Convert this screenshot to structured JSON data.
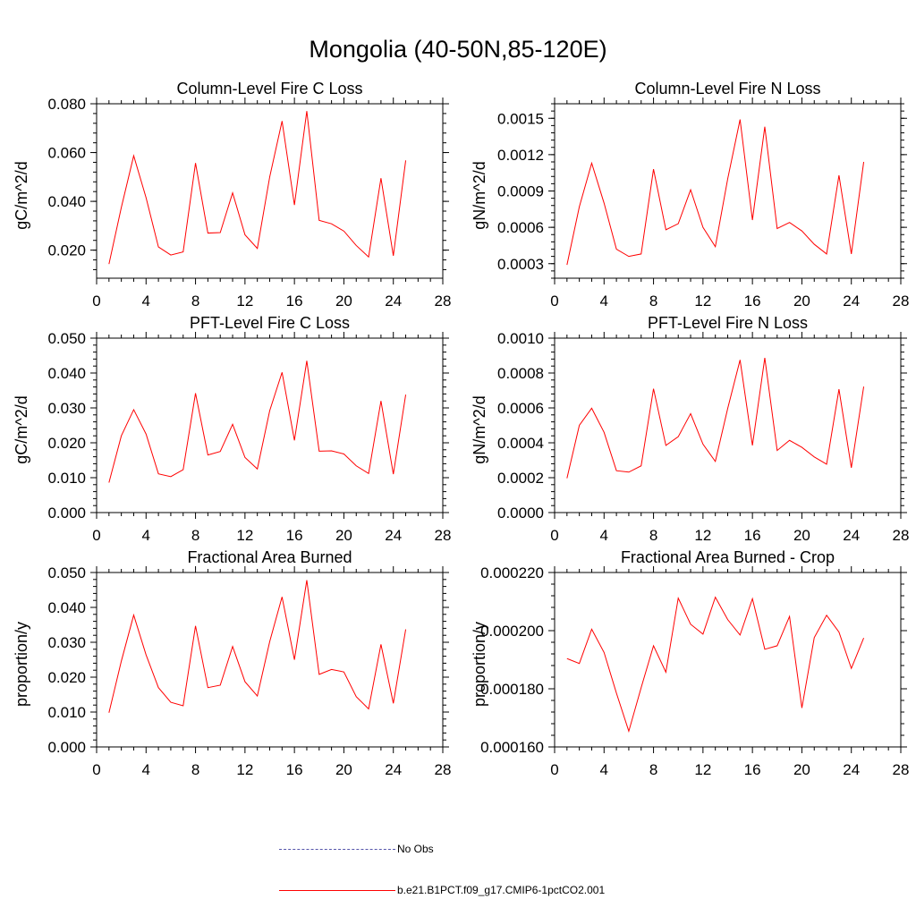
{
  "page": {
    "title": "Mongolia (40-50N,85-120E)"
  },
  "colors": {
    "series": "#ff0000",
    "obs": "#5555aa",
    "axis": "#000000"
  },
  "legend": [
    {
      "label": "No Obs",
      "style": "dashed",
      "color": "#5555aa"
    },
    {
      "label": "b.e21.B1PCT.f09_g17.CMIP6-1pctCO2.001",
      "style": "solid",
      "color": "#ff0000"
    }
  ],
  "chart_data": [
    {
      "type": "line",
      "title": "Column-Level Fire C Loss",
      "ylabel": "gC/m^2/d",
      "xlabel": "",
      "xlim": [
        0,
        28
      ],
      "ylim": [
        0.0085,
        0.08
      ],
      "xticks": [
        0,
        4,
        8,
        12,
        16,
        20,
        24,
        28
      ],
      "yticks": [
        "0.020",
        "0.040",
        "0.060",
        "0.080"
      ],
      "ytick_values": [
        0.02,
        0.04,
        0.06,
        0.08
      ],
      "yminor_step": 0.004,
      "x": [
        1,
        2,
        3,
        4,
        5,
        6,
        7,
        8,
        9,
        10,
        11,
        12,
        13,
        14,
        15,
        16,
        17,
        18,
        19,
        20,
        21,
        22,
        23,
        24,
        25
      ],
      "series": [
        {
          "name": "b.e21.B1PCT.f09_g17.CMIP6-1pctCO2.001",
          "values": [
            0.0143,
            0.0375,
            0.0587,
            0.0415,
            0.0213,
            0.018,
            0.0193,
            0.0557,
            0.027,
            0.0272,
            0.0435,
            0.0263,
            0.0207,
            0.05,
            0.0729,
            0.0385,
            0.077,
            0.0322,
            0.0308,
            0.0278,
            0.0219,
            0.0172,
            0.0495,
            0.0177,
            0.0568
          ]
        }
      ]
    },
    {
      "type": "line",
      "title": "Column-Level Fire N Loss",
      "ylabel": "gN/m^2/d",
      "xlabel": "",
      "xlim": [
        0,
        28
      ],
      "ylim": [
        0.00018,
        0.00162
      ],
      "xticks": [
        0,
        4,
        8,
        12,
        16,
        20,
        24,
        28
      ],
      "yticks": [
        "0.0003",
        "0.0006",
        "0.0009",
        "0.0012",
        "0.0015"
      ],
      "ytick_values": [
        0.0003,
        0.0006,
        0.0009,
        0.0012,
        0.0015
      ],
      "yminor_step": 6e-05,
      "x": [
        1,
        2,
        3,
        4,
        5,
        6,
        7,
        8,
        9,
        10,
        11,
        12,
        13,
        14,
        15,
        16,
        17,
        18,
        19,
        20,
        21,
        22,
        23,
        24,
        25
      ],
      "series": [
        {
          "name": "b.e21.B1PCT.f09_g17.CMIP6-1pctCO2.001",
          "values": [
            0.00029,
            0.00077,
            0.00113,
            0.0008,
            0.00042,
            0.00036,
            0.00038,
            0.00108,
            0.00058,
            0.00063,
            0.00091,
            0.0006,
            0.00044,
            0.001,
            0.00149,
            0.00066,
            0.00143,
            0.00059,
            0.00064,
            0.00057,
            0.00046,
            0.00038,
            0.00103,
            0.00038,
            0.00114
          ]
        }
      ]
    },
    {
      "type": "line",
      "title": "PFT-Level Fire C Loss",
      "ylabel": "gC/m^2/d",
      "xlabel": "",
      "xlim": [
        0,
        28
      ],
      "ylim": [
        0,
        0.05
      ],
      "xticks": [
        0,
        4,
        8,
        12,
        16,
        20,
        24,
        28
      ],
      "yticks": [
        "0.000",
        "0.010",
        "0.020",
        "0.030",
        "0.040",
        "0.050"
      ],
      "ytick_values": [
        0,
        0.01,
        0.02,
        0.03,
        0.04,
        0.05
      ],
      "yminor_step": 0.002,
      "x": [
        1,
        2,
        3,
        4,
        5,
        6,
        7,
        8,
        9,
        10,
        11,
        12,
        13,
        14,
        15,
        16,
        17,
        18,
        19,
        20,
        21,
        22,
        23,
        24,
        25
      ],
      "series": [
        {
          "name": "b.e21.B1PCT.f09_g17.CMIP6-1pctCO2.001",
          "values": [
            0.0086,
            0.022,
            0.0295,
            0.0225,
            0.0111,
            0.0103,
            0.0123,
            0.0342,
            0.0165,
            0.0175,
            0.0253,
            0.0158,
            0.0125,
            0.0292,
            0.0402,
            0.0207,
            0.0435,
            0.0176,
            0.0177,
            0.0168,
            0.0134,
            0.0112,
            0.032,
            0.011,
            0.0338
          ]
        }
      ]
    },
    {
      "type": "line",
      "title": "PFT-Level Fire N Loss",
      "ylabel": "gN/m^2/d",
      "xlabel": "",
      "xlim": [
        0,
        28
      ],
      "ylim": [
        0,
        0.001
      ],
      "xticks": [
        0,
        4,
        8,
        12,
        16,
        20,
        24,
        28
      ],
      "yticks": [
        "0.0000",
        "0.0002",
        "0.0004",
        "0.0006",
        "0.0008",
        "0.0010"
      ],
      "ytick_values": [
        0,
        0.0002,
        0.0004,
        0.0006,
        0.0008,
        0.001
      ],
      "yminor_step": 4e-05,
      "x": [
        1,
        2,
        3,
        4,
        5,
        6,
        7,
        8,
        9,
        10,
        11,
        12,
        13,
        14,
        15,
        16,
        17,
        18,
        19,
        20,
        21,
        22,
        23,
        24,
        25
      ],
      "series": [
        {
          "name": "b.e21.B1PCT.f09_g17.CMIP6-1pctCO2.001",
          "values": [
            0.000197,
            0.0005,
            0.000598,
            0.00046,
            0.00024,
            0.000232,
            0.000268,
            0.00071,
            0.000385,
            0.000435,
            0.000567,
            0.000392,
            0.000293,
            0.000597,
            0.000875,
            0.000385,
            0.000887,
            0.000356,
            0.000414,
            0.000374,
            0.000319,
            0.000277,
            0.000707,
            0.000257,
            0.000722
          ]
        }
      ]
    },
    {
      "type": "line",
      "title": "Fractional Area Burned",
      "ylabel": "proportion/y",
      "xlabel": "",
      "xlim": [
        0,
        28
      ],
      "ylim": [
        0,
        0.05
      ],
      "xticks": [
        0,
        4,
        8,
        12,
        16,
        20,
        24,
        28
      ],
      "yticks": [
        "0.000",
        "0.010",
        "0.020",
        "0.030",
        "0.040",
        "0.050"
      ],
      "ytick_values": [
        0,
        0.01,
        0.02,
        0.03,
        0.04,
        0.05
      ],
      "yminor_step": 0.002,
      "x": [
        1,
        2,
        3,
        4,
        5,
        6,
        7,
        8,
        9,
        10,
        11,
        12,
        13,
        14,
        15,
        16,
        17,
        18,
        19,
        20,
        21,
        22,
        23,
        24,
        25
      ],
      "series": [
        {
          "name": "b.e21.B1PCT.f09_g17.CMIP6-1pctCO2.001",
          "values": [
            0.0098,
            0.0246,
            0.0378,
            0.0264,
            0.017,
            0.0128,
            0.0118,
            0.0347,
            0.017,
            0.0177,
            0.0288,
            0.0187,
            0.0146,
            0.0302,
            0.043,
            0.025,
            0.0478,
            0.0208,
            0.0222,
            0.0215,
            0.0144,
            0.0109,
            0.0294,
            0.0125,
            0.0337
          ]
        }
      ]
    },
    {
      "type": "line",
      "title": "Fractional Area Burned - Crop",
      "ylabel": "proportion/y",
      "xlabel": "",
      "xlim": [
        0,
        28
      ],
      "ylim": [
        0.00016,
        0.00022
      ],
      "xticks": [
        0,
        4,
        8,
        12,
        16,
        20,
        24,
        28
      ],
      "yticks": [
        "0.000160",
        "0.000180",
        "0.000200",
        "0.000220"
      ],
      "ytick_values": [
        0.00016,
        0.00018,
        0.0002,
        0.00022
      ],
      "yminor_step": 4e-06,
      "x": [
        1,
        2,
        3,
        4,
        5,
        6,
        7,
        8,
        9,
        10,
        11,
        12,
        13,
        14,
        15,
        16,
        17,
        18,
        19,
        20,
        21,
        22,
        23,
        24,
        25
      ],
      "series": [
        {
          "name": "b.e21.B1PCT.f09_g17.CMIP6-1pctCO2.001",
          "values": [
            0.0001904,
            0.0001887,
            0.0002005,
            0.0001925,
            0.0001785,
            0.0001654,
            0.0001804,
            0.0001948,
            0.0001857,
            0.0002112,
            0.0002022,
            0.0001988,
            0.0002115,
            0.0002038,
            0.0001985,
            0.000211,
            0.0001936,
            0.0001948,
            0.0002049,
            0.0001734,
            0.0001976,
            0.0002053,
            0.0001995,
            0.000187,
            0.0001975
          ]
        }
      ]
    }
  ]
}
